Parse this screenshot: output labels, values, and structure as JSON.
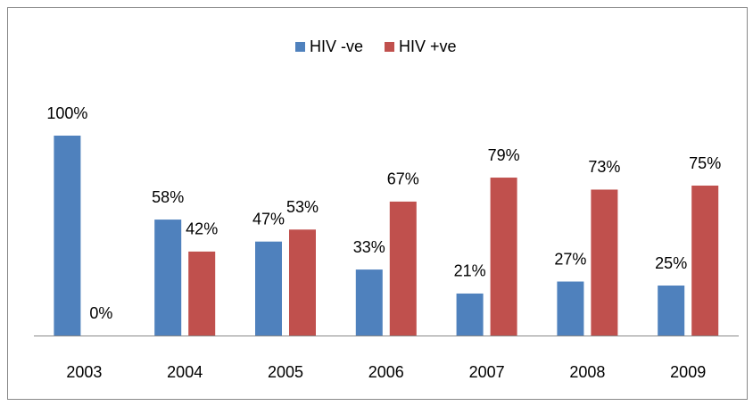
{
  "chart_data": {
    "type": "bar",
    "categories": [
      "2003",
      "2004",
      "2005",
      "2006",
      "2007",
      "2008",
      "2009"
    ],
    "series": [
      {
        "name": "HIV -ve",
        "color": "#4f81bd",
        "values": [
          100,
          58,
          47,
          33,
          21,
          27,
          25
        ],
        "value_labels": [
          "100%",
          "58%",
          "47%",
          "33%",
          "21%",
          "27%",
          "25%"
        ]
      },
      {
        "name": "HIV +ve",
        "color": "#c0504d",
        "values": [
          0,
          42,
          53,
          67,
          79,
          73,
          75
        ],
        "value_labels": [
          "0%",
          "42%",
          "53%",
          "67%",
          "79%",
          "73%",
          "75%"
        ]
      }
    ],
    "legend": "top"
  }
}
